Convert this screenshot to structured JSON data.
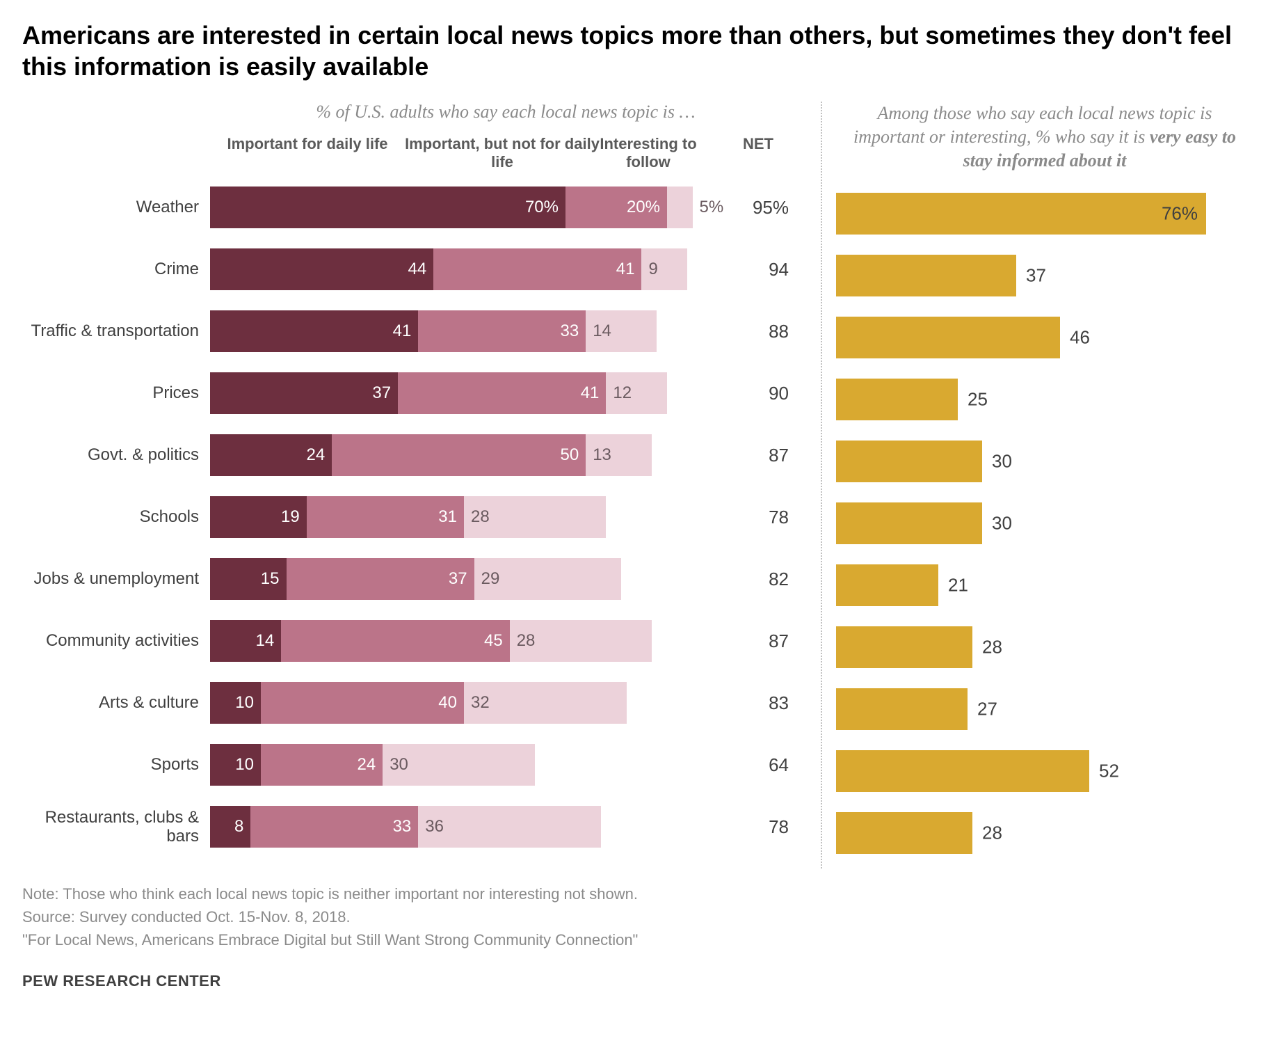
{
  "title": "Americans are interested in certain local news topics more than others, but sometimes they don't feel this information is easily available",
  "left_header": "% of U.S. adults who say each local news topic is …",
  "columns": {
    "c1": "Important for daily life",
    "c2": "Important, but not for daily life",
    "c3": "Interesting to follow",
    "c4": "NET"
  },
  "right_header_a": "Among those who say each local news topic is important or interesting, % who say it is ",
  "right_header_b": "very easy to stay informed about it",
  "chart": {
    "type": "stacked-bar + bar",
    "stacked_max": 100,
    "easy_max": 80,
    "colors": {
      "seg_a": "#6d2f3f",
      "seg_b": "#bb7489",
      "seg_c": "#ecd2da",
      "seg_c_text": "#6a5a5f",
      "easy_bar": "#d9a930",
      "background": "#ffffff",
      "text": "#404040",
      "muted": "#8a8a8a"
    },
    "rows": [
      {
        "label": "Weather",
        "a": 70,
        "a_label": "70%",
        "b": 20,
        "b_label": "20%",
        "c": 5,
        "c_label": "5%",
        "c_out": true,
        "net": "95%",
        "easy": 76,
        "easy_label": "76%",
        "easy_inside": true
      },
      {
        "label": "Crime",
        "a": 44,
        "a_label": "44",
        "b": 41,
        "b_label": "41",
        "c": 9,
        "c_label": "9",
        "c_out": false,
        "net": "94",
        "easy": 37,
        "easy_label": "37",
        "easy_inside": false
      },
      {
        "label": "Traffic & transportation",
        "a": 41,
        "a_label": "41",
        "b": 33,
        "b_label": "33",
        "c": 14,
        "c_label": "14",
        "c_out": false,
        "net": "88",
        "easy": 46,
        "easy_label": "46",
        "easy_inside": false
      },
      {
        "label": "Prices",
        "a": 37,
        "a_label": "37",
        "b": 41,
        "b_label": "41",
        "c": 12,
        "c_label": "12",
        "c_out": false,
        "net": "90",
        "easy": 25,
        "easy_label": "25",
        "easy_inside": false
      },
      {
        "label": "Govt. & politics",
        "a": 24,
        "a_label": "24",
        "b": 50,
        "b_label": "50",
        "c": 13,
        "c_label": "13",
        "c_out": false,
        "net": "87",
        "easy": 30,
        "easy_label": "30",
        "easy_inside": false
      },
      {
        "label": "Schools",
        "a": 19,
        "a_label": "19",
        "b": 31,
        "b_label": "31",
        "c": 28,
        "c_label": "28",
        "c_out": false,
        "net": "78",
        "easy": 30,
        "easy_label": "30",
        "easy_inside": false
      },
      {
        "label": "Jobs & unemployment",
        "a": 15,
        "a_label": "15",
        "b": 37,
        "b_label": "37",
        "c": 29,
        "c_label": "29",
        "c_out": false,
        "net": "82",
        "easy": 21,
        "easy_label": "21",
        "easy_inside": false
      },
      {
        "label": "Community activities",
        "a": 14,
        "a_label": "14",
        "b": 45,
        "b_label": "45",
        "c": 28,
        "c_label": "28",
        "c_out": false,
        "net": "87",
        "easy": 28,
        "easy_label": "28",
        "easy_inside": false
      },
      {
        "label": "Arts & culture",
        "a": 10,
        "a_label": "10",
        "b": 40,
        "b_label": "40",
        "c": 32,
        "c_label": "32",
        "c_out": false,
        "net": "83",
        "easy": 27,
        "easy_label": "27",
        "easy_inside": false
      },
      {
        "label": "Sports",
        "a": 10,
        "a_label": "10",
        "b": 24,
        "b_label": "24",
        "c": 30,
        "c_label": "30",
        "c_out": false,
        "net": "64",
        "easy": 52,
        "easy_label": "52",
        "easy_inside": false
      },
      {
        "label": "Restaurants, clubs & bars",
        "a": 8,
        "a_label": "8",
        "b": 33,
        "b_label": "33",
        "c": 36,
        "c_label": "36",
        "c_out": false,
        "net": "78",
        "easy": 28,
        "easy_label": "28",
        "easy_inside": false
      }
    ]
  },
  "notes": [
    "Note: Those who think each local news topic is neither important nor interesting not shown.",
    "Source: Survey conducted Oct. 15-Nov. 8, 2018.",
    "\"For Local News, Americans Embrace Digital but Still Want Strong Community Connection\""
  ],
  "footer": "PEW RESEARCH CENTER"
}
